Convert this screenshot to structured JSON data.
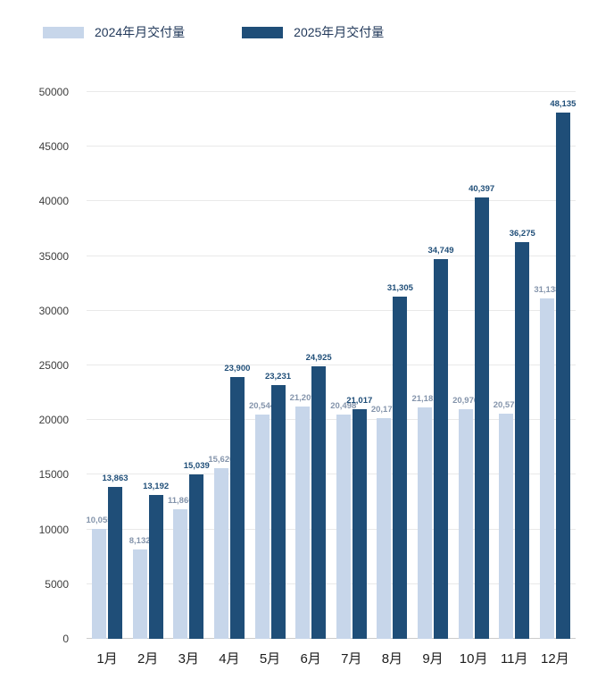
{
  "legend": {
    "items": [
      {
        "label": "2024年月交付量"
      },
      {
        "label": "2025年月交付量"
      }
    ]
  },
  "chart_data": {
    "type": "bar",
    "title": "",
    "xlabel": "",
    "ylabel": "",
    "categories": [
      "1月",
      "2月",
      "3月",
      "4月",
      "5月",
      "6月",
      "7月",
      "8月",
      "9月",
      "10月",
      "11月",
      "12月"
    ],
    "series": [
      {
        "name": "2024年月交付量",
        "color": "#c7d6ea",
        "label_color": "#8494ab",
        "values": [
          10055,
          8132,
          11866,
          15620,
          20544,
          21209,
          20498,
          20176,
          21181,
          20976,
          20575,
          31138
        ]
      },
      {
        "name": "2025年月交付量",
        "color": "#1f4e78",
        "label_color": "#1f4e78",
        "values": [
          13863,
          13192,
          15039,
          23900,
          23231,
          24925,
          21017,
          31305,
          34749,
          40397,
          36275,
          48135
        ]
      }
    ],
    "ylim": [
      0,
      50000
    ],
    "ytick_interval": 5000,
    "ytick_labels": [
      "0",
      "5000",
      "10000",
      "15000",
      "20000",
      "25000",
      "30000",
      "35000",
      "40000",
      "45000",
      "50000"
    ],
    "grid": true,
    "legend_position": "top-left"
  }
}
